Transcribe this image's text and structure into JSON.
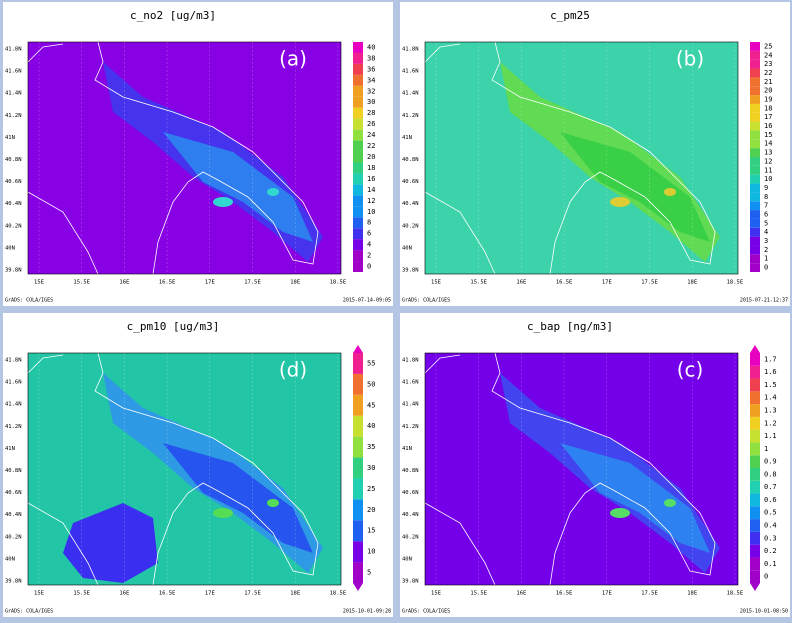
{
  "panels": [
    {
      "title": "c_no2 [ug/m3]",
      "label": "(a)",
      "colorbar": [
        0,
        2,
        4,
        6,
        8,
        10,
        12,
        14,
        16,
        18,
        20,
        22,
        24,
        26,
        28,
        30,
        32,
        34,
        36,
        38,
        40
      ],
      "lat_ticks": [
        "41.8N",
        "41.6N",
        "41.4N",
        "41.2N",
        "41N",
        "40.8N",
        "40.6N",
        "40.4N",
        "40.2N",
        "40N",
        "39.8N"
      ],
      "lon_ticks": [
        "15E",
        "15.5E",
        "16E",
        "16.5E",
        "17E",
        "17.5E",
        "18E",
        "18.5E"
      ],
      "credit": "GrADS: COLA/IGES",
      "timestamp": "2015-07-14-09:05"
    },
    {
      "title": "c_pm25",
      "label": "(b)",
      "colorbar": [
        0,
        1,
        2,
        3,
        4,
        5,
        6,
        7,
        8,
        9,
        10,
        11,
        12,
        13,
        14,
        15,
        16,
        17,
        18,
        19,
        20,
        21,
        22,
        23,
        24,
        25
      ],
      "lat_ticks": [
        "41.8N",
        "41.6N",
        "41.4N",
        "41.2N",
        "41N",
        "40.8N",
        "40.6N",
        "40.4N",
        "40.2N",
        "40N",
        "39.8N"
      ],
      "lon_ticks": [
        "15E",
        "15.5E",
        "16E",
        "16.5E",
        "17E",
        "17.5E",
        "18E",
        "18.5E"
      ],
      "credit": "GrADS: COLA/IGES",
      "timestamp": "2015-07-21-12:37"
    },
    {
      "title": "c_pm10 [ug/m3]",
      "label": "(d)",
      "colorbar": [
        5,
        10,
        15,
        20,
        25,
        30,
        35,
        40,
        45,
        50,
        55
      ],
      "lat_ticks": [
        "41.8N",
        "41.6N",
        "41.4N",
        "41.2N",
        "41N",
        "40.8N",
        "40.6N",
        "40.4N",
        "40.2N",
        "40N",
        "39.8N"
      ],
      "lon_ticks": [
        "15E",
        "15.5E",
        "16E",
        "16.5E",
        "17E",
        "17.5E",
        "18E",
        "18.5E"
      ],
      "credit": "GrADS: COLA/IGES",
      "timestamp": "2015-10-01-09:28"
    },
    {
      "title": "c_bap [ng/m3]",
      "label": "(c)",
      "colorbar": [
        0,
        0.1,
        0.2,
        0.3,
        0.4,
        0.5,
        0.6,
        0.7,
        0.8,
        0.9,
        1,
        1.1,
        1.2,
        1.3,
        1.4,
        1.5,
        1.6,
        1.7
      ],
      "lat_ticks": [
        "41.8N",
        "41.6N",
        "41.4N",
        "41.2N",
        "41N",
        "40.8N",
        "40.6N",
        "40.4N",
        "40.2N",
        "40N",
        "39.8N"
      ],
      "lon_ticks": [
        "15E",
        "15.5E",
        "16E",
        "16.5E",
        "17E",
        "17.5E",
        "18E",
        "18.5E"
      ],
      "credit": "GrADS: COLA/IGES",
      "timestamp": "2015-10-01-08:50"
    }
  ]
}
